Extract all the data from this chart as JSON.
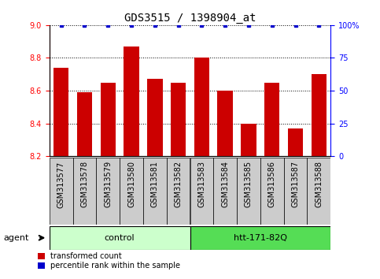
{
  "title": "GDS3515 / 1398904_at",
  "samples": [
    "GSM313577",
    "GSM313578",
    "GSM313579",
    "GSM313580",
    "GSM313581",
    "GSM313582",
    "GSM313583",
    "GSM313584",
    "GSM313585",
    "GSM313586",
    "GSM313587",
    "GSM313588"
  ],
  "bar_values": [
    8.74,
    8.59,
    8.65,
    8.87,
    8.67,
    8.65,
    8.8,
    8.6,
    8.4,
    8.65,
    8.37,
    8.7
  ],
  "percentile_values": [
    100,
    100,
    100,
    100,
    100,
    100,
    100,
    100,
    100,
    100,
    100,
    100
  ],
  "bar_color": "#cc0000",
  "percentile_color": "#0000cc",
  "ylim_left": [
    8.2,
    9.0
  ],
  "ylim_right": [
    0,
    100
  ],
  "yticks_left": [
    8.2,
    8.4,
    8.6,
    8.8,
    9.0
  ],
  "yticks_right": [
    0,
    25,
    50,
    75,
    100
  ],
  "groups": [
    {
      "label": "control",
      "start": 0,
      "end": 6,
      "color": "#ccffcc"
    },
    {
      "label": "htt-171-82Q",
      "start": 6,
      "end": 12,
      "color": "#55dd55"
    }
  ],
  "agent_label": "agent",
  "legend_bar_label": "transformed count",
  "legend_pct_label": "percentile rank within the sample",
  "sample_box_color": "#cccccc",
  "title_fontsize": 10,
  "label_fontsize": 7,
  "group_fontsize": 8,
  "legend_fontsize": 7,
  "agent_fontsize": 8
}
